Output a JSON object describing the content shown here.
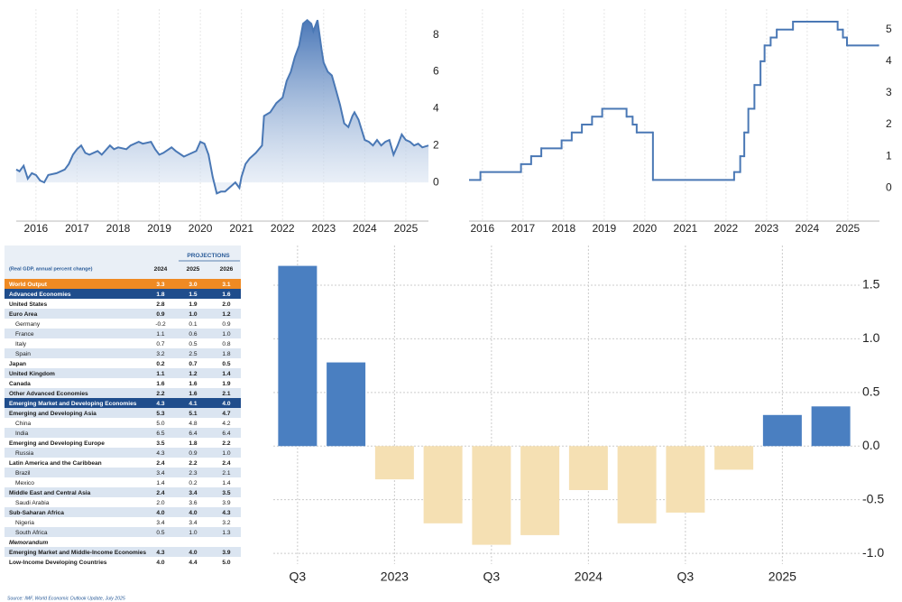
{
  "chart_data": [
    {
      "type": "area",
      "color": "#4a78b5",
      "x": [
        2015.52,
        2015.6,
        2015.7,
        2015.8,
        2015.9,
        2016.0,
        2016.1,
        2016.2,
        2016.3,
        2016.5,
        2016.7,
        2016.8,
        2016.9,
        2017.0,
        2017.1,
        2017.2,
        2017.3,
        2017.5,
        2017.6,
        2017.8,
        2017.9,
        2018.0,
        2018.2,
        2018.3,
        2018.5,
        2018.6,
        2018.8,
        2018.9,
        2019.0,
        2019.1,
        2019.3,
        2019.4,
        2019.6,
        2019.7,
        2019.9,
        2020.0,
        2020.1,
        2020.2,
        2020.3,
        2020.4,
        2020.5,
        2020.6,
        2020.75,
        2020.85,
        2020.95,
        2021.0,
        2021.1,
        2021.2,
        2021.35,
        2021.5,
        2021.55,
        2021.7,
        2021.85,
        2022.0,
        2022.1,
        2022.2,
        2022.3,
        2022.4,
        2022.5,
        2022.6,
        2022.7,
        2022.75,
        2022.85,
        2022.95,
        2023.0,
        2023.1,
        2023.2,
        2023.3,
        2023.4,
        2023.5,
        2023.6,
        2023.7,
        2023.75,
        2023.85,
        2024.0,
        2024.1,
        2024.2,
        2024.3,
        2024.4,
        2024.5,
        2024.6,
        2024.7,
        2024.8,
        2024.9,
        2025.0,
        2025.1,
        2025.2,
        2025.3,
        2025.4,
        2025.55
      ],
      "values": [
        0.7,
        0.6,
        0.9,
        0.2,
        0.5,
        0.4,
        0.1,
        0.0,
        0.4,
        0.5,
        0.7,
        1.0,
        1.5,
        1.8,
        2.0,
        1.6,
        1.5,
        1.7,
        1.5,
        2.0,
        1.8,
        1.9,
        1.8,
        2.0,
        2.2,
        2.1,
        2.2,
        1.8,
        1.5,
        1.6,
        1.9,
        1.7,
        1.4,
        1.5,
        1.7,
        2.2,
        2.1,
        1.5,
        0.3,
        -0.6,
        -0.5,
        -0.5,
        -0.2,
        0.0,
        -0.3,
        0.3,
        1.0,
        1.3,
        1.6,
        2.0,
        3.6,
        3.8,
        4.3,
        4.6,
        5.5,
        6.0,
        6.8,
        7.4,
        8.6,
        8.8,
        8.6,
        8.2,
        8.8,
        7.2,
        6.5,
        6.0,
        5.8,
        5.0,
        4.2,
        3.2,
        3.0,
        3.6,
        3.8,
        3.4,
        2.3,
        2.2,
        2.0,
        2.3,
        2.0,
        2.2,
        2.3,
        1.5,
        2.0,
        2.6,
        2.3,
        2.2,
        2.0,
        2.1,
        1.9,
        2.0
      ],
      "xlim": [
        2015.52,
        2025.55
      ],
      "xticks": [
        2016,
        2017,
        2018,
        2019,
        2020,
        2021,
        2022,
        2023,
        2024,
        2025
      ],
      "ylim": [
        -2.1,
        9.4
      ],
      "yticks": [
        0,
        2,
        4,
        6,
        8
      ],
      "grid": true
    },
    {
      "type": "step",
      "color": "#4a78b5",
      "x": [
        2015.67,
        2015.95,
        2016.95,
        2017.2,
        2017.45,
        2017.95,
        2018.2,
        2018.45,
        2018.7,
        2018.95,
        2019.55,
        2019.7,
        2019.8,
        2020.2,
        2022.2,
        2022.35,
        2022.45,
        2022.55,
        2022.7,
        2022.85,
        2022.95,
        2023.1,
        2023.25,
        2023.65,
        2024.75,
        2024.88,
        2024.98,
        2025.75
      ],
      "values": [
        0.25,
        0.5,
        0.75,
        1,
        1.25,
        1.5,
        1.75,
        2,
        2.25,
        2.5,
        2.25,
        2,
        1.75,
        0.25,
        0.5,
        1,
        1.75,
        2.5,
        3.25,
        4,
        4.5,
        4.75,
        5,
        5.25,
        5,
        4.75,
        4.5,
        4.5
      ],
      "xlim": [
        2015.67,
        2025.78
      ],
      "xticks": [
        2016,
        2017,
        2018,
        2019,
        2020,
        2021,
        2022,
        2023,
        2024,
        2025
      ],
      "ylim": [
        -1.05,
        5.65
      ],
      "yticks": [
        0,
        1,
        2,
        3,
        4,
        5
      ],
      "grid": true
    },
    {
      "type": "bar",
      "color": "#4a7fc1",
      "negative_color": "#f5e0b3",
      "categories": [
        "Q3",
        null,
        "2023",
        null,
        "Q3",
        null,
        "2024",
        null,
        "Q3",
        null,
        "2025",
        null
      ],
      "values": [
        1.68,
        0.78,
        -0.31,
        -0.72,
        -0.92,
        -0.83,
        -0.41,
        -0.72,
        -0.62,
        -0.22,
        0.29,
        0.37
      ],
      "ylim": [
        -1.1,
        1.87
      ],
      "yticks": [
        {
          "value": -1,
          "label": "-1.0"
        },
        -0.5,
        {
          "value": 0,
          "label": "0.0"
        },
        0.5,
        {
          "value": 1,
          "label": "1.0"
        },
        1.5
      ],
      "grid": true
    }
  ],
  "table": {
    "header_group": "PROJECTIONS",
    "caption": "(Real GDP, annual percent change)",
    "columns": [
      "2024",
      "2025",
      "2026"
    ],
    "rows": [
      [
        "World Output",
        "3.3",
        "3.0",
        "3.1"
      ],
      [
        "Advanced Economies",
        "1.8",
        "1.5",
        "1.6"
      ],
      [
        "United States",
        "2.8",
        "1.9",
        "2.0"
      ],
      [
        "Euro Area",
        "0.9",
        "1.0",
        "1.2"
      ],
      [
        "Germany",
        "-0.2",
        "0.1",
        "0.9"
      ],
      [
        "France",
        "1.1",
        "0.6",
        "1.0"
      ],
      [
        "Italy",
        "0.7",
        "0.5",
        "0.8"
      ],
      [
        "Spain",
        "3.2",
        "2.5",
        "1.8"
      ],
      [
        "Japan",
        "0.2",
        "0.7",
        "0.5"
      ],
      [
        "United Kingdom",
        "1.1",
        "1.2",
        "1.4"
      ],
      [
        "Canada",
        "1.6",
        "1.6",
        "1.9"
      ],
      [
        "Other Advanced Economies",
        "2.2",
        "1.6",
        "2.1"
      ],
      [
        "Emerging Market and Developing Economies",
        "4.3",
        "4.1",
        "4.0"
      ],
      [
        "Emerging and Developing Asia",
        "5.3",
        "5.1",
        "4.7"
      ],
      [
        "China",
        "5.0",
        "4.8",
        "4.2"
      ],
      [
        "India",
        "6.5",
        "6.4",
        "6.4"
      ],
      [
        "Emerging and Developing Europe",
        "3.5",
        "1.8",
        "2.2"
      ],
      [
        "Russia",
        "4.3",
        "0.9",
        "1.0"
      ],
      [
        "Latin America and the Caribbean",
        "2.4",
        "2.2",
        "2.4"
      ],
      [
        "Brazil",
        "3.4",
        "2.3",
        "2.1"
      ],
      [
        "Mexico",
        "1.4",
        "0.2",
        "1.4"
      ],
      [
        "Middle East and Central Asia",
        "2.4",
        "3.4",
        "3.5"
      ],
      [
        "Saudi Arabia",
        "2.0",
        "3.6",
        "3.9"
      ],
      [
        "Sub-Saharan Africa",
        "4.0",
        "4.0",
        "4.3"
      ],
      [
        "Nigeria",
        "3.4",
        "3.4",
        "3.2"
      ],
      [
        "South Africa",
        "0.5",
        "1.0",
        "1.3"
      ],
      [
        "Memorandum"
      ],
      [
        "Emerging Market and Middle-Income Economies",
        "4.3",
        "4.0",
        "3.9"
      ],
      [
        "Low-Income Developing Countries",
        "4.0",
        "4.4",
        "5.0"
      ]
    ],
    "source": "Source: IMF, World Economic Outlook Update, July 2025"
  }
}
